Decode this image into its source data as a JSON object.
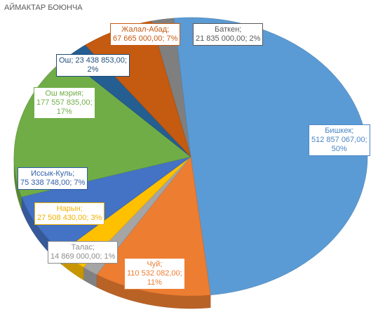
{
  "chart_data": {
    "type": "pie",
    "title": "АЙМАКТАР БОЮНЧА",
    "slices": [
      {
        "label": "Баткен",
        "value": 21835000.0,
        "value_text": "21 835 000,00",
        "percent": "2%",
        "color": "#7f7f7f",
        "text_color": "#595959"
      },
      {
        "label": "Бишкек",
        "value": 512857067.0,
        "value_text": "512 857 067,00",
        "percent": "50%",
        "color": "#5b9bd5",
        "text_color": "#4a86c5"
      },
      {
        "label": "Чуй",
        "value": 110532082.0,
        "value_text": "110 532 082,00",
        "percent": "11%",
        "color": "#ed7d31",
        "text_color": "#ed7d31"
      },
      {
        "label": "Талас",
        "value": 14869000.0,
        "value_text": "14 869 000,00",
        "percent": "1%",
        "color": "#a5a5a5",
        "text_color": "#8c8c8c"
      },
      {
        "label": "Нарын",
        "value": 27508430.0,
        "value_text": "27 508 430,00",
        "percent": "3%",
        "color": "#ffc000",
        "text_color": "#f0b000"
      },
      {
        "label": "Иссык-Куль",
        "value": 75338748.0,
        "value_text": "75 338 748,00",
        "percent": "7%",
        "color": "#4472c4",
        "text_color": "#2f5da8"
      },
      {
        "label": "Ош мэрия",
        "value": 177557835.0,
        "value_text": "177 557 835,00",
        "percent": "17%",
        "color": "#70ad47",
        "text_color": "#70ad47"
      },
      {
        "label": "Ош",
        "value": 23438853.0,
        "value_text": "23 438 853,00",
        "percent": "2%",
        "color": "#255e91",
        "text_color": "#1f4e79"
      },
      {
        "label": "Жалал-Абад",
        "value": 67665000.0,
        "value_text": "67 665 000,00",
        "percent": "7%",
        "color": "#c55a11",
        "text_color": "#c55a11"
      }
    ],
    "legend": "none"
  }
}
